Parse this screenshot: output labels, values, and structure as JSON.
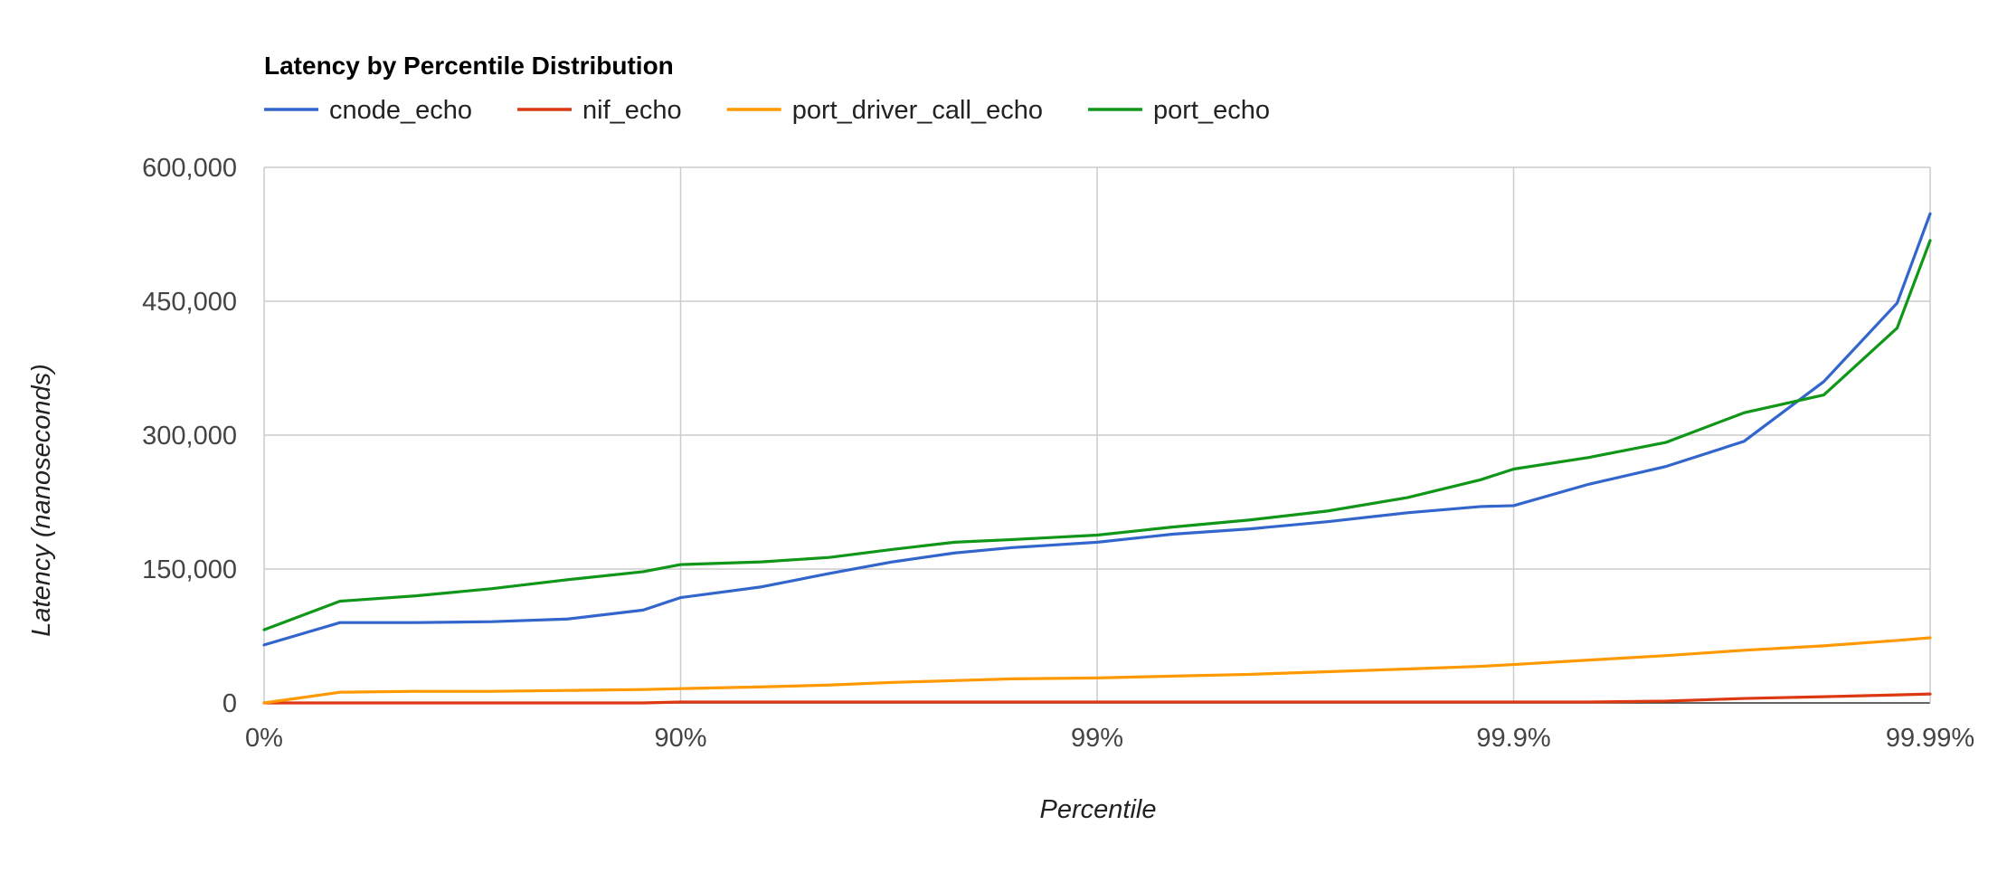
{
  "chart_data": {
    "type": "line",
    "title": "Latency by Percentile Distribution",
    "xlabel": "Percentile",
    "ylabel": "Latency (nanoseconds)",
    "ylim": [
      0,
      600000
    ],
    "y_ticks": [
      "0",
      "150,000",
      "300,000",
      "450,000",
      "600,000"
    ],
    "y_tick_values": [
      0,
      150000,
      300000,
      450000,
      600000
    ],
    "x_ticks": [
      "0%",
      "90%",
      "99%",
      "99.9%",
      "99.99%"
    ],
    "x_tick_values": [
      0,
      90,
      99,
      99.9,
      99.99
    ],
    "x_scale": "log inverse-percentile (each labeled tick is one decade closer to 100%)",
    "grid": true,
    "legend_position": "top",
    "x": [
      0,
      34.3,
      56.8,
      71.6,
      81.3,
      87.7,
      90,
      93.6,
      95.6,
      96.9,
      97.8,
      98.4,
      99,
      99.34,
      99.57,
      99.72,
      99.82,
      99.88,
      99.9,
      99.934,
      99.957,
      99.972,
      99.982,
      99.988,
      99.99
    ],
    "series": [
      {
        "name": "cnode_echo",
        "color": "#3366cc",
        "values": [
          65000,
          90000,
          90000,
          91000,
          94000,
          104000,
          118000,
          130000,
          145000,
          158000,
          168000,
          174000,
          180000,
          189000,
          195000,
          203000,
          213000,
          220000,
          221000,
          245000,
          265000,
          293000,
          360000,
          448000,
          548000
        ]
      },
      {
        "name": "nif_echo",
        "color": "#dc3912",
        "values": [
          0,
          0,
          0,
          0,
          0,
          0,
          1000,
          1000,
          1000,
          1000,
          1000,
          1000,
          1000,
          1000,
          1000,
          1000,
          1000,
          1000,
          1000,
          1000,
          2000,
          5000,
          7000,
          9000,
          10000
        ]
      },
      {
        "name": "port_driver_call_echo",
        "color": "#ff9900",
        "values": [
          0,
          12000,
          13000,
          13000,
          14000,
          15000,
          16000,
          18000,
          20000,
          23000,
          25000,
          27000,
          28000,
          30000,
          32000,
          35000,
          38000,
          41000,
          43000,
          48000,
          53000,
          59000,
          64000,
          70000,
          73000
        ]
      },
      {
        "name": "port_echo",
        "color": "#109618",
        "values": [
          82000,
          114000,
          120000,
          128000,
          138000,
          147000,
          155000,
          158000,
          163000,
          172000,
          180000,
          183000,
          188000,
          197000,
          205000,
          215000,
          230000,
          250000,
          262000,
          275000,
          292000,
          325000,
          345000,
          420000,
          518000
        ]
      }
    ]
  }
}
